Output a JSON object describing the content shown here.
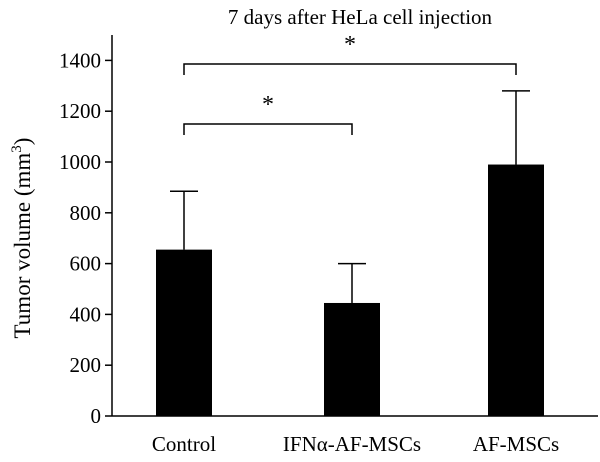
{
  "chart_data": {
    "type": "bar",
    "title": "7 days after HeLa cell injection",
    "xlabel": "",
    "ylabel_main": "Tumor volume (mm",
    "ylabel_sup": "3",
    "ylabel_close": ")",
    "ylim": [
      0,
      1500
    ],
    "yticks": [
      0,
      200,
      400,
      600,
      800,
      1000,
      1200,
      1400
    ],
    "categories": [
      "Control",
      "IFNα-AF-MSCs",
      "AF-MSCs"
    ],
    "values": [
      655,
      445,
      990
    ],
    "error_upper": [
      885,
      600,
      1280
    ],
    "bar_color": "#000000",
    "grid": false,
    "legend": "none",
    "significance": [
      {
        "from": 0,
        "to": 1,
        "label": "*"
      },
      {
        "from": 0,
        "to": 2,
        "label": "*"
      }
    ]
  }
}
